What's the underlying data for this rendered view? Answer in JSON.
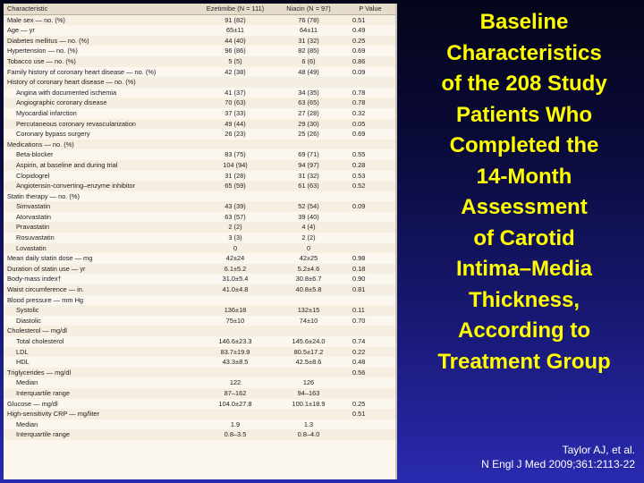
{
  "table": {
    "columns": [
      "Characteristic",
      "Ezetimibe (N = 111)",
      "Niacin (N = 97)",
      "P Value"
    ],
    "rows": [
      {
        "label": "Male sex — no. (%)",
        "ez": "91 (82)",
        "ni": "76 (78)",
        "p": "0.51",
        "sub": false
      },
      {
        "label": "Age — yr",
        "ez": "65±11",
        "ni": "64±11",
        "p": "0.49",
        "sub": false
      },
      {
        "label": "Diabetes mellitus — no. (%)",
        "ez": "44 (40)",
        "ni": "31 (32)",
        "p": "0.25",
        "sub": false
      },
      {
        "label": "Hypertension — no. (%)",
        "ez": "96 (86)",
        "ni": "82 (85)",
        "p": "0.69",
        "sub": false
      },
      {
        "label": "Tobacco use — no. (%)",
        "ez": "5 (5)",
        "ni": "6 (6)",
        "p": "0.86",
        "sub": false
      },
      {
        "label": "Family history of coronary heart disease — no. (%)",
        "ez": "42 (38)",
        "ni": "48 (49)",
        "p": "0.09",
        "sub": false
      },
      {
        "label": "History of coronary heart disease — no. (%)",
        "ez": "",
        "ni": "",
        "p": "",
        "sub": false
      },
      {
        "label": "Angina with documented ischemia",
        "ez": "41 (37)",
        "ni": "34 (35)",
        "p": "0.78",
        "sub": true
      },
      {
        "label": "Angiographic coronary disease",
        "ez": "70 (63)",
        "ni": "63 (65)",
        "p": "0.78",
        "sub": true
      },
      {
        "label": "Myocardial infarction",
        "ez": "37 (33)",
        "ni": "27 (28)",
        "p": "0.32",
        "sub": true
      },
      {
        "label": "Percutaneous coronary revascularization",
        "ez": "49 (44)",
        "ni": "29 (30)",
        "p": "0.05",
        "sub": true
      },
      {
        "label": "Coronary bypass surgery",
        "ez": "26 (23)",
        "ni": "25 (26)",
        "p": "0.69",
        "sub": true
      },
      {
        "label": "Medications — no. (%)",
        "ez": "",
        "ni": "",
        "p": "",
        "sub": false
      },
      {
        "label": "Beta-blocker",
        "ez": "83 (75)",
        "ni": "69 (71)",
        "p": "0.55",
        "sub": true
      },
      {
        "label": "Aspirin, at baseline and during trial",
        "ez": "104 (94)",
        "ni": "94 (97)",
        "p": "0.28",
        "sub": true
      },
      {
        "label": "Clopidogrel",
        "ez": "31 (28)",
        "ni": "31 (32)",
        "p": "0.53",
        "sub": true
      },
      {
        "label": "Angiotensin-converting–enzyme inhibitor",
        "ez": "65 (59)",
        "ni": "61 (63)",
        "p": "0.52",
        "sub": true
      },
      {
        "label": "Statin therapy — no. (%)",
        "ez": "",
        "ni": "",
        "p": "",
        "sub": false
      },
      {
        "label": "Simvastatin",
        "ez": "43 (39)",
        "ni": "52 (54)",
        "p": "0.09",
        "sub": true
      },
      {
        "label": "Atorvastatin",
        "ez": "63 (57)",
        "ni": "39 (40)",
        "p": "",
        "sub": true
      },
      {
        "label": "Pravastatin",
        "ez": "2 (2)",
        "ni": "4 (4)",
        "p": "",
        "sub": true
      },
      {
        "label": "Rosuvastatin",
        "ez": "3 (3)",
        "ni": "2 (2)",
        "p": "",
        "sub": true
      },
      {
        "label": "Lovastatin",
        "ez": "0",
        "ni": "0",
        "p": "",
        "sub": true
      },
      {
        "label": "Mean daily statin dose — mg",
        "ez": "42±24",
        "ni": "42±25",
        "p": "0.98",
        "sub": false
      },
      {
        "label": "Duration of statin use — yr",
        "ez": "6.1±5.2",
        "ni": "5.2±4.6",
        "p": "0.18",
        "sub": false
      },
      {
        "label": "Body-mass index†",
        "ez": "31.0±5.4",
        "ni": "30.8±6.7",
        "p": "0.90",
        "sub": false
      },
      {
        "label": "Waist circumference — in.",
        "ez": "41.0±4.8",
        "ni": "40.8±5.8",
        "p": "0.81",
        "sub": false
      },
      {
        "label": "Blood pressure — mm Hg",
        "ez": "",
        "ni": "",
        "p": "",
        "sub": false
      },
      {
        "label": "Systolic",
        "ez": "136±18",
        "ni": "132±15",
        "p": "0.11",
        "sub": true
      },
      {
        "label": "Diastolic",
        "ez": "75±10",
        "ni": "74±10",
        "p": "0.70",
        "sub": true
      },
      {
        "label": "Cholesterol — mg/dl",
        "ez": "",
        "ni": "",
        "p": "",
        "sub": false
      },
      {
        "label": "Total cholesterol",
        "ez": "146.6±23.3",
        "ni": "145.6±24.0",
        "p": "0.74",
        "sub": true
      },
      {
        "label": "LDL",
        "ez": "83.7±19.9",
        "ni": "80.5±17.2",
        "p": "0.22",
        "sub": true
      },
      {
        "label": "HDL",
        "ez": "43.3±8.5",
        "ni": "42.5±8.6",
        "p": "0.48",
        "sub": true
      },
      {
        "label": "Triglycerides — mg/dl",
        "ez": "",
        "ni": "",
        "p": "0.56",
        "sub": false
      },
      {
        "label": "Median",
        "ez": "122",
        "ni": "126",
        "p": "",
        "sub": true
      },
      {
        "label": "Interquartile range",
        "ez": "87–162",
        "ni": "94–163",
        "p": "",
        "sub": true
      },
      {
        "label": "Glucose — mg/dl",
        "ez": "104.0±27.8",
        "ni": "100.1±18.9",
        "p": "0.25",
        "sub": false
      },
      {
        "label": "High-sensitivity CRP — mg/liter",
        "ez": "",
        "ni": "",
        "p": "0.51",
        "sub": false
      },
      {
        "label": "Median",
        "ez": "1.9",
        "ni": "1.3",
        "p": "",
        "sub": true
      },
      {
        "label": "Interquartile range",
        "ez": "0.8–3.5",
        "ni": "0.8–4.0",
        "p": "",
        "sub": true
      }
    ]
  },
  "title_lines": [
    "Baseline",
    "Characteristics",
    "of the 208 Study",
    "Patients Who",
    "Completed the",
    "14-Month",
    "Assessment",
    "of Carotid",
    "Intima–Media",
    "Thickness,",
    "According to",
    "Treatment Group"
  ],
  "citation": {
    "authors": "Taylor AJ, et al.",
    "journal": "N Engl J Med 2009;361:2113-22"
  }
}
